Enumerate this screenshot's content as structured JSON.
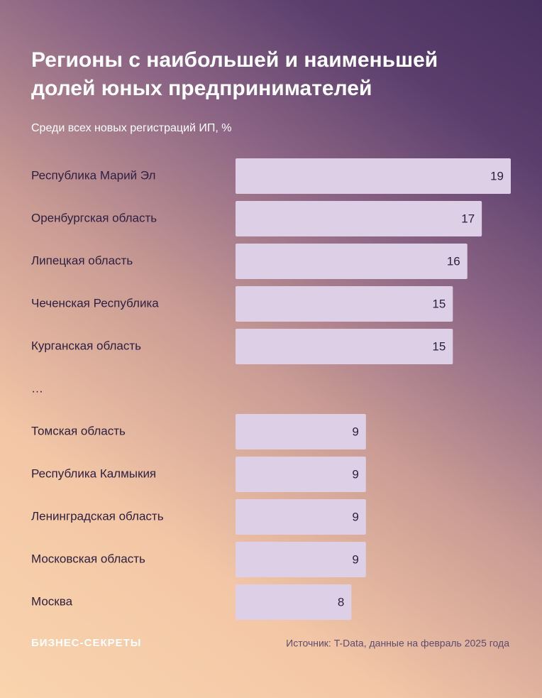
{
  "chart_data": {
    "type": "bar",
    "orientation": "horizontal",
    "title": "Регионы с наибольшей и наименьшей долей юных предпринимателей",
    "subtitle": "Среди всех новых регистраций ИП, %",
    "categories": [
      "Республика Марий Эл",
      "Оренбургская область",
      "Липецкая область",
      "Чеченская Республика",
      "Курганская область",
      "…",
      "Томская область",
      "Республика Калмыкия",
      "Ленинградская область",
      "Московская область",
      "Москва"
    ],
    "values": [
      19,
      17,
      16,
      15,
      15,
      null,
      9,
      9,
      9,
      9,
      8
    ],
    "color": "#ddd0e6",
    "brand": "БИЗНЕС-СЕКРЕТЫ",
    "source": "Источник: T-Data, данные на февраль 2025 года"
  }
}
